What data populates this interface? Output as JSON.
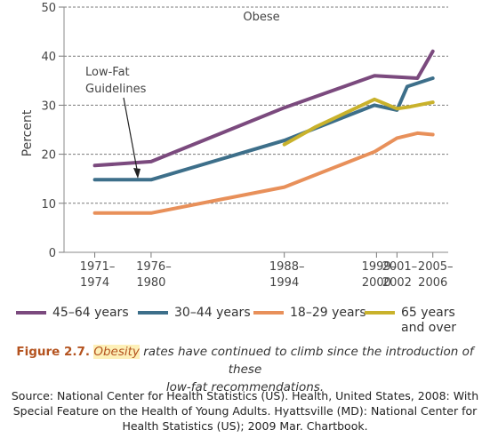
{
  "chart_data": {
    "type": "line",
    "ylabel": "Percent",
    "ylim": [
      0,
      50
    ],
    "yticks": [
      0,
      10,
      20,
      30,
      40,
      50
    ],
    "grid": "horizontal dashed",
    "x": [
      1972.5,
      1978,
      1991,
      2000,
      2002,
      2005.5
    ],
    "xtick_labels": [
      {
        "line1": "1971–",
        "line2": "1974",
        "x": 1972.5
      },
      {
        "line1": "1976–",
        "line2": "1980",
        "x": 1978
      },
      {
        "line1": "1988–",
        "line2": "1994",
        "x": 1991
      },
      {
        "line1": "1999–",
        "line2": "2000",
        "x": 2000
      },
      {
        "line1": "2001–",
        "line2": "2002",
        "x": 2002
      },
      {
        "line1": "2005–",
        "line2": "2006",
        "x": 2005.5
      }
    ],
    "threshold_label": "Obese",
    "annotation": {
      "line1": "Low-Fat",
      "line2": "Guidelines",
      "x": 1978,
      "y": 15
    },
    "series": [
      {
        "name": "45–64 years",
        "color": "#7b4a7e",
        "points": [
          [
            1972.5,
            17.7
          ],
          [
            1978,
            18.5
          ],
          [
            1991,
            29.5
          ],
          [
            1999.8,
            36
          ],
          [
            2004,
            35.5
          ],
          [
            2005.5,
            41
          ]
        ]
      },
      {
        "name": "30–44 years",
        "color": "#3d6f8a",
        "points": [
          [
            1972.5,
            14.8
          ],
          [
            1978,
            14.8
          ],
          [
            1991,
            22.8
          ],
          [
            1999.8,
            30
          ],
          [
            2002,
            29
          ],
          [
            2003,
            33.8
          ],
          [
            2005.5,
            35.5
          ]
        ]
      },
      {
        "name": "18–29 years",
        "color": "#e8905a",
        "points": [
          [
            1972.5,
            8
          ],
          [
            1978,
            8
          ],
          [
            1991,
            13.3
          ],
          [
            1999.8,
            20.5
          ],
          [
            2002,
            23.3
          ],
          [
            2004,
            24.3
          ],
          [
            2005.5,
            24
          ]
        ]
      },
      {
        "name": "65 years\nand over",
        "color": "#c9b22c",
        "points": [
          [
            1991,
            22
          ],
          [
            1994,
            25.5
          ],
          [
            1999.8,
            31.2
          ],
          [
            2002,
            29.3
          ],
          [
            2003.3,
            29.7
          ],
          [
            2005.5,
            30.6
          ]
        ]
      }
    ]
  },
  "caption": {
    "prefix": "Figure 2.7.",
    "term": "Obesity",
    "text1": " rates have continued to climb since the introduction of these",
    "text2": "low-fat recommendations."
  },
  "source": {
    "line1": "Source: National Center for Health Statistics (US). Health, United States, 2008: With",
    "line2": "Special Feature on the Health of Young Adults. Hyattsville (MD): National Center for",
    "line3": "Health Statistics (US); 2009 Mar. Chartbook."
  }
}
